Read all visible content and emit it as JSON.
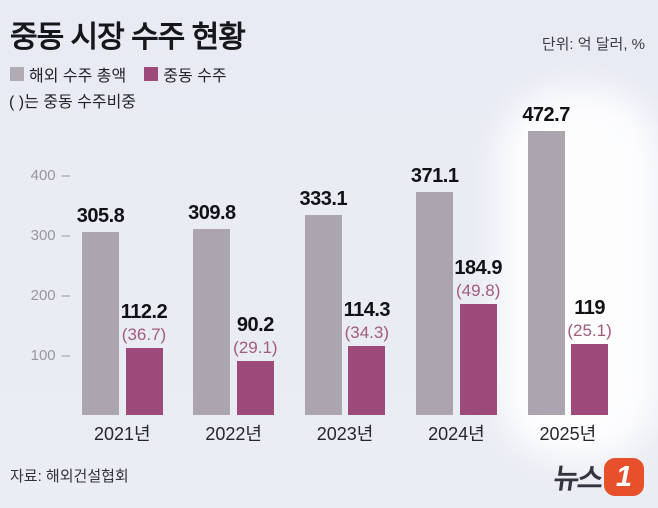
{
  "header": {
    "title": "중동 시장 수주 현황",
    "unit_label": "단위: 억 달러, %",
    "paren_note": "( )는 중동 수주비중"
  },
  "legend": {
    "items": [
      {
        "label": "해외 수주 총액",
        "color": "#b2abb4"
      },
      {
        "label": "중동 수주",
        "color": "#9d4a7a"
      }
    ]
  },
  "chart_data": {
    "type": "bar",
    "title": "중동 시장 수주 현황",
    "unit": "억 달러, %",
    "categories": [
      "2021년",
      "2022년",
      "2023년",
      "2024년",
      "2025년"
    ],
    "series": [
      {
        "name": "해외 수주 총액",
        "color": "#aca5af",
        "values": [
          305.8,
          309.8,
          333.1,
          371.1,
          472.7
        ],
        "labels": [
          "305.8",
          "309.8",
          "333.1",
          "371.1",
          "472.7"
        ]
      },
      {
        "name": "중동 수주",
        "color": "#9d4a7a",
        "values": [
          112.2,
          90.2,
          114.3,
          184.9,
          119
        ],
        "labels": [
          "112.2",
          "90.2",
          "114.3",
          "184.9",
          "119"
        ],
        "share_labels": [
          "(36.7)",
          "(29.1)",
          "(34.3)",
          "(49.8)",
          "(25.1)"
        ]
      }
    ],
    "yticks": [
      400,
      300,
      200,
      100
    ],
    "ylim": [
      0,
      500
    ],
    "grid": false,
    "legend_position": "top-left",
    "highlight_category": "2025년",
    "note": "( )는 중동 수주비중"
  },
  "footer": {
    "source": "자료: 해외건설협회",
    "logo_text": "뉴스",
    "logo_one": "1"
  }
}
